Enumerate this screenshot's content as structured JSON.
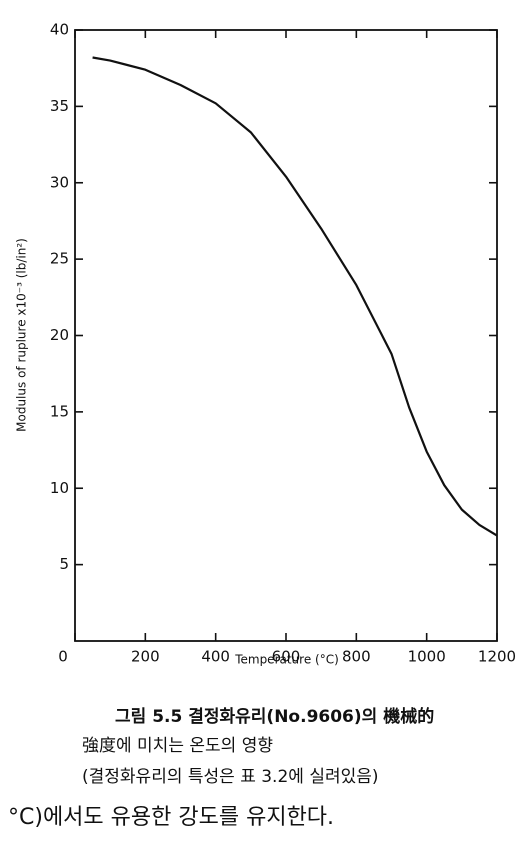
{
  "chart_data": {
    "type": "line",
    "x_label": "Temperature (°C)",
    "y_label": "Modulus of ruplure x10⁻³ (lb/in²)",
    "x": [
      50,
      100,
      200,
      300,
      400,
      500,
      600,
      700,
      800,
      900,
      950,
      1000,
      1050,
      1100,
      1150,
      1200
    ],
    "series": [
      {
        "color": "#111111",
        "values": [
          38.2,
          38.0,
          37.4,
          36.4,
          35.2,
          33.3,
          30.4,
          27.0,
          23.3,
          18.8,
          15.3,
          12.4,
          10.2,
          8.6,
          7.6,
          6.9
        ]
      }
    ],
    "xlim": [
      0,
      1200
    ],
    "xticks": [
      0,
      200,
      400,
      600,
      800,
      1000,
      1200
    ],
    "ylim": [
      0,
      40
    ],
    "yticks": [
      5,
      10,
      15,
      20,
      25,
      30,
      35,
      40
    ],
    "caption": [
      "그림 5.5  결정화유리(No.9606)의 機械的",
      "強度에 미치는 온도의 영향",
      "(결정화유리의 특성은 표 3.2에 실려있음)"
    ],
    "body_text": "°C)에서도 유용한 강도를 유지한다."
  }
}
